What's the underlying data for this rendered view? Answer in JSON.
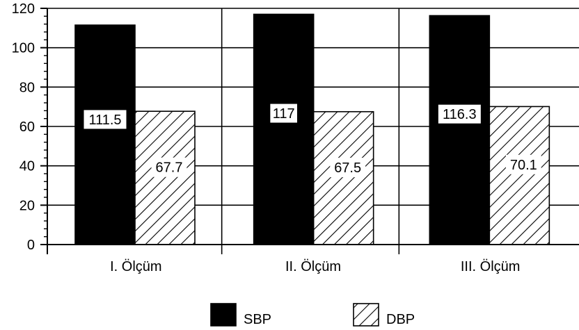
{
  "chart_data": {
    "type": "bar",
    "categories": [
      "I. Ölçüm",
      "II. Ölçüm",
      "III. Ölçüm"
    ],
    "series": [
      {
        "name": "SBP",
        "values": [
          111.5,
          117,
          116.3
        ],
        "labels": [
          "111.5",
          "117",
          "116.3"
        ],
        "fill": "solid",
        "color": "#000000"
      },
      {
        "name": "DBP",
        "values": [
          67.7,
          67.5,
          70.1
        ],
        "labels": [
          "67.7",
          "67.5",
          "70.1"
        ],
        "fill": "hatched",
        "color": "#000000"
      }
    ],
    "ylim": [
      0,
      120
    ],
    "yticks": [
      0,
      20,
      40,
      60,
      80,
      100,
      120
    ],
    "ytick_labels": [
      "0",
      "20",
      "40",
      "60",
      "80",
      "100",
      "120"
    ],
    "grid": true,
    "legend_position": "bottom"
  }
}
